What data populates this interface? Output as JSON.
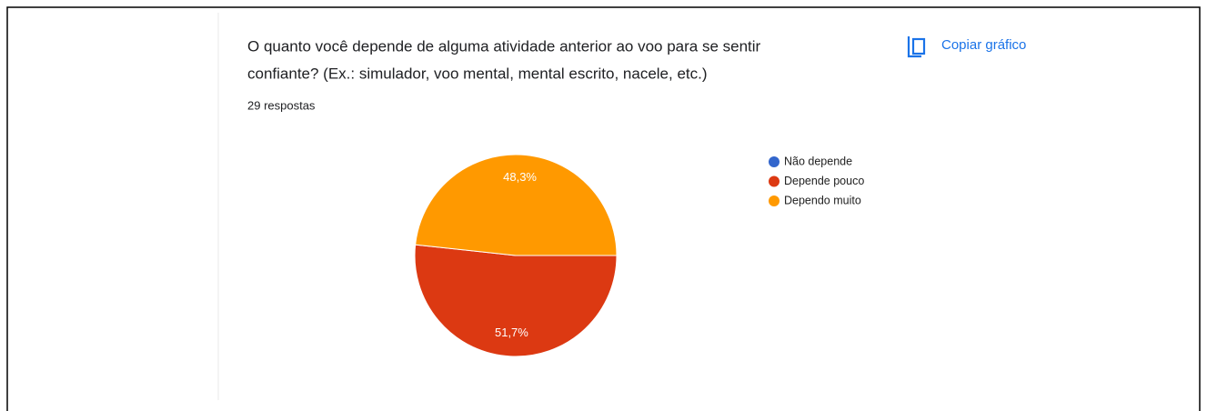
{
  "chart_data": {
    "type": "pie",
    "title": [
      "O quanto você depende de alguma atividade anterior ao voo para se sentir",
      "confiante? (Ex.: simulador, voo mental, mental escrito, nacele, etc.)"
    ],
    "subtitle": "29 respostas",
    "action": "Copiar gráfico",
    "categories": [
      "Não depende",
      "Depende pouco",
      "Dependo muito"
    ],
    "values": [
      0,
      51.7,
      48.3
    ],
    "value_labels": [
      null,
      "51,7%",
      "48,3%"
    ],
    "colors": [
      "#3366cc",
      "#dc3912",
      "#ff9900"
    ],
    "legend": "right"
  }
}
